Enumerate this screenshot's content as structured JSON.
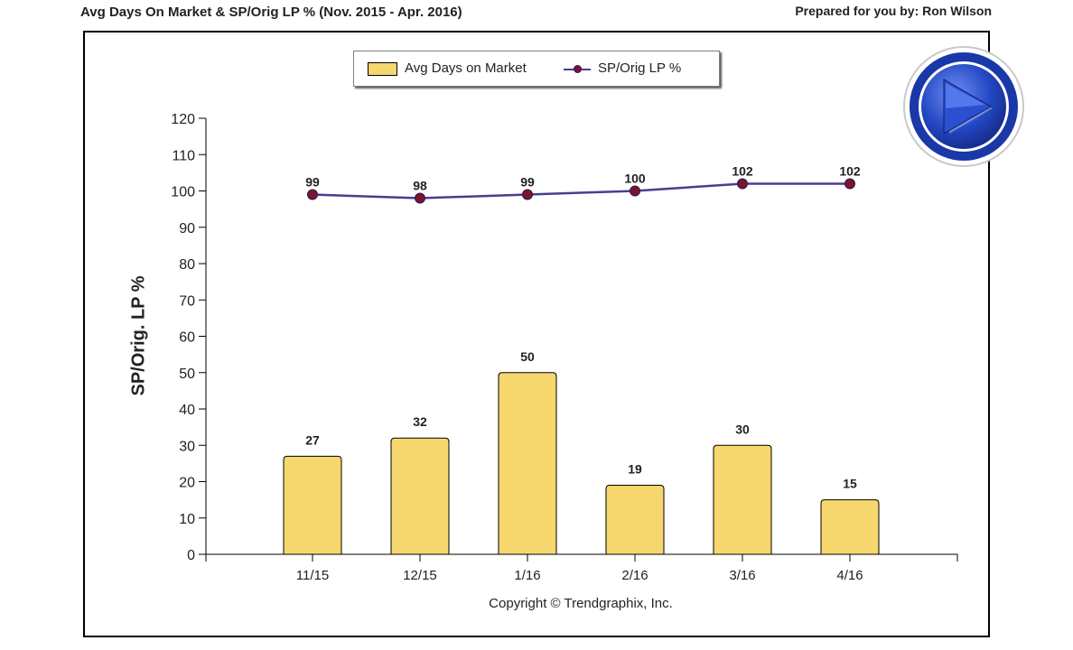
{
  "header": {
    "title": "Avg Days On Market & SP/Orig LP % (Nov. 2015 - Apr. 2016)",
    "prepared_by": "Prepared for you by: Ron Wilson"
  },
  "colors": {
    "bar_fill": "#f5d76e",
    "line": "#4b3d8f",
    "marker": "#7a1530",
    "play_blue": "#1f3fb8"
  },
  "chart_data": {
    "type": "bar",
    "title": "Avg Days On Market & SP/Orig LP % (Nov. 2015 - Apr. 2016)",
    "categories": [
      "11/15",
      "12/15",
      "1/16",
      "2/16",
      "3/16",
      "4/16"
    ],
    "series": [
      {
        "name": "Avg Days on Market",
        "type": "bar",
        "values": [
          27,
          32,
          50,
          19,
          30,
          15
        ]
      },
      {
        "name": "SP/Orig LP %",
        "type": "line",
        "values": [
          99,
          98,
          99,
          100,
          102,
          102
        ]
      }
    ],
    "ylabel": "SP/Orig. LP %",
    "xlabel": "",
    "ylim": [
      0,
      120
    ],
    "yticks": [
      0,
      10,
      20,
      30,
      40,
      50,
      60,
      70,
      80,
      90,
      100,
      110,
      120
    ],
    "legend": "top-center",
    "grid": false
  },
  "footer": {
    "copyright": "Copyright © Trendgraphix, Inc."
  },
  "play_button": {
    "icon": "play-icon"
  }
}
